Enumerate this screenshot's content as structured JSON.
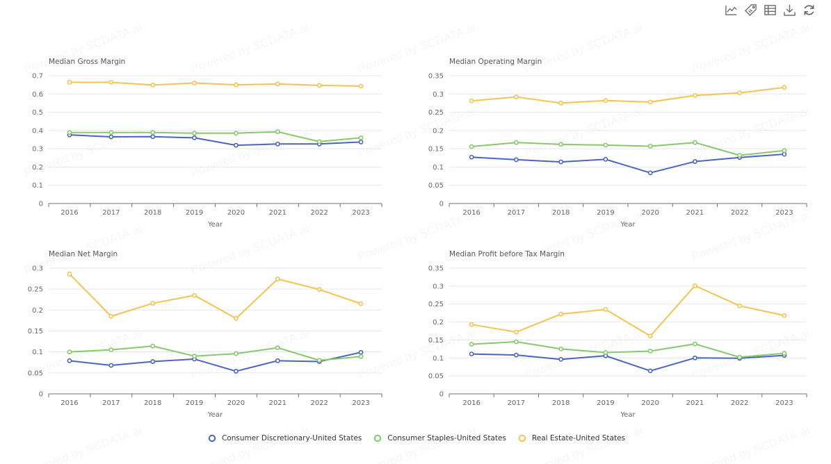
{
  "toolbox": [
    {
      "name": "line-chart-icon",
      "title": "Switch to line chart"
    },
    {
      "name": "tag-icon",
      "title": "Switch to bar chart"
    },
    {
      "name": "data-view-icon",
      "title": "Data view"
    },
    {
      "name": "download-icon",
      "title": "Save as image"
    },
    {
      "name": "refresh-icon",
      "title": "Restore"
    }
  ],
  "watermark": "Powered by SCDATA.ai",
  "colors": {
    "Consumer Discretionary-United States": "#4a64c4",
    "Consumer Staples-United States": "#86c96b",
    "Real Estate-United States": "#f7c24f"
  },
  "legend": [
    {
      "label": "Consumer Discretionary-United States",
      "color": "#4a64c4"
    },
    {
      "label": "Consumer Staples-United States",
      "color": "#86c96b"
    },
    {
      "label": "Real Estate-United States",
      "color": "#f7c24f"
    }
  ],
  "chart_data": [
    {
      "type": "line",
      "title": "Median Gross Margin",
      "xlabel": "Year",
      "ylabel": "",
      "categories": [
        "2016",
        "2017",
        "2018",
        "2019",
        "2020",
        "2021",
        "2022",
        "2023"
      ],
      "ylim": [
        0,
        0.7
      ],
      "yticks": [
        0,
        0.1,
        0.2,
        0.3,
        0.4,
        0.5,
        0.6,
        0.7
      ],
      "ytick_labels": [
        "0",
        "0.1",
        "0.2",
        "0.3",
        "0.4",
        "0.5",
        "0.6",
        "0.7"
      ],
      "grid": true,
      "series": [
        {
          "name": "Consumer Discretionary-United States",
          "values": [
            0.376,
            0.365,
            0.366,
            0.36,
            0.319,
            0.326,
            0.326,
            0.337
          ]
        },
        {
          "name": "Consumer Staples-United States",
          "values": [
            0.389,
            0.389,
            0.389,
            0.385,
            0.385,
            0.393,
            0.339,
            0.36
          ]
        },
        {
          "name": "Real Estate-United States",
          "values": [
            0.664,
            0.664,
            0.649,
            0.66,
            0.65,
            0.655,
            0.647,
            0.643
          ]
        }
      ]
    },
    {
      "type": "line",
      "title": "Median Operating Margin",
      "xlabel": "Year",
      "ylabel": "",
      "categories": [
        "2016",
        "2017",
        "2018",
        "2019",
        "2020",
        "2021",
        "2022",
        "2023"
      ],
      "ylim": [
        0,
        0.35
      ],
      "yticks": [
        0,
        0.05,
        0.1,
        0.15,
        0.2,
        0.25,
        0.3,
        0.35
      ],
      "ytick_labels": [
        "0",
        "0.05",
        "0.1",
        "0.15",
        "0.2",
        "0.25",
        "0.3",
        "0.35"
      ],
      "grid": true,
      "series": [
        {
          "name": "Consumer Discretionary-United States",
          "values": [
            0.127,
            0.12,
            0.114,
            0.121,
            0.084,
            0.115,
            0.126,
            0.135
          ]
        },
        {
          "name": "Consumer Staples-United States",
          "values": [
            0.156,
            0.167,
            0.162,
            0.16,
            0.157,
            0.167,
            0.132,
            0.145
          ]
        },
        {
          "name": "Real Estate-United States",
          "values": [
            0.281,
            0.292,
            0.275,
            0.282,
            0.278,
            0.296,
            0.303,
            0.318
          ]
        }
      ]
    },
    {
      "type": "line",
      "title": "Median Net Margin",
      "xlabel": "Year",
      "ylabel": "",
      "categories": [
        "2016",
        "2017",
        "2018",
        "2019",
        "2020",
        "2021",
        "2022",
        "2023"
      ],
      "ylim": [
        0,
        0.3
      ],
      "yticks": [
        0,
        0.05,
        0.1,
        0.15,
        0.2,
        0.25,
        0.3
      ],
      "ytick_labels": [
        "0",
        "0.05",
        "0.1",
        "0.15",
        "0.2",
        "0.25",
        "0.3"
      ],
      "grid": true,
      "series": [
        {
          "name": "Consumer Discretionary-United States",
          "values": [
            0.079,
            0.068,
            0.077,
            0.083,
            0.054,
            0.079,
            0.077,
            0.099
          ]
        },
        {
          "name": "Consumer Staples-United States",
          "values": [
            0.1,
            0.105,
            0.114,
            0.09,
            0.096,
            0.11,
            0.08,
            0.089
          ]
        },
        {
          "name": "Real Estate-United States",
          "values": [
            0.286,
            0.185,
            0.216,
            0.235,
            0.18,
            0.274,
            0.249,
            0.215
          ]
        }
      ]
    },
    {
      "type": "line",
      "title": "Median Profit before Tax Margin",
      "xlabel": "Year",
      "ylabel": "",
      "categories": [
        "2016",
        "2017",
        "2018",
        "2019",
        "2020",
        "2021",
        "2022",
        "2023"
      ],
      "ylim": [
        0,
        0.35
      ],
      "yticks": [
        0,
        0.05,
        0.1,
        0.15,
        0.2,
        0.25,
        0.3,
        0.35
      ],
      "ytick_labels": [
        "0",
        "0.05",
        "0.1",
        "0.15",
        "0.2",
        "0.25",
        "0.3",
        "0.35"
      ],
      "grid": true,
      "series": [
        {
          "name": "Consumer Discretionary-United States",
          "values": [
            0.111,
            0.108,
            0.096,
            0.106,
            0.064,
            0.1,
            0.099,
            0.107
          ]
        },
        {
          "name": "Consumer Staples-United States",
          "values": [
            0.138,
            0.145,
            0.125,
            0.115,
            0.119,
            0.139,
            0.102,
            0.113
          ]
        },
        {
          "name": "Real Estate-United States",
          "values": [
            0.193,
            0.172,
            0.222,
            0.235,
            0.161,
            0.301,
            0.245,
            0.218
          ]
        }
      ]
    }
  ]
}
